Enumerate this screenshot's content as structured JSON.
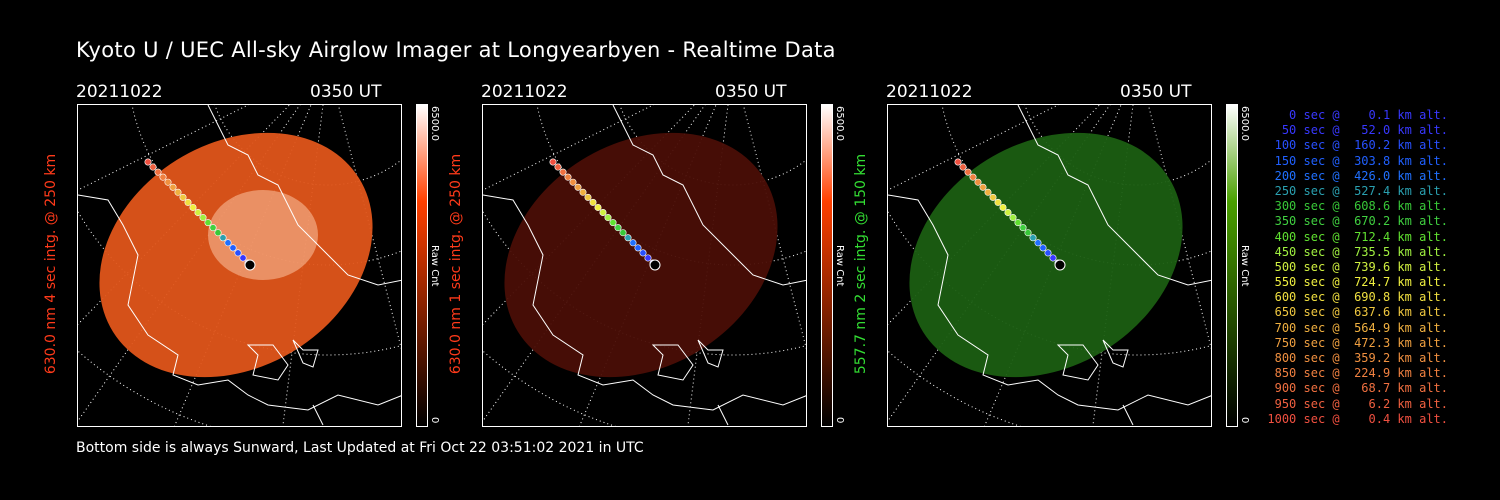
{
  "title": "Kyoto U / UEC All-sky Airglow Imager at Longyearbyen - Realtime Data",
  "footer": "Bottom side is always Sunward, Last Updated at Fri Oct 22 03:51:02 2021 in UTC",
  "panels": [
    {
      "date": "20211022",
      "time": "0350 UT",
      "ylabel": "630.0 nm 4 sec intg. @ 250 km",
      "label_color": "#ff3a1a",
      "cbar_max": "6500.0",
      "cbar_unit": "Raw Cnt",
      "cbar_min": "0",
      "cbar_color": "#ff4000",
      "image_color": "#e0551a",
      "image_level": 0.85
    },
    {
      "date": "20211022",
      "time": "0350 UT",
      "ylabel": "630.0 nm 1 sec intg. @ 250 km",
      "label_color": "#ff3a1a",
      "cbar_max": "6500.0",
      "cbar_unit": "Raw Cnt",
      "cbar_min": "0",
      "cbar_color": "#ff4000",
      "image_color": "#4a0e06",
      "image_level": 0.3
    },
    {
      "date": "20211022",
      "time": "0350 UT",
      "ylabel": "557.7 nm 2 sec intg. @ 150 km",
      "label_color": "#33dd33",
      "cbar_max": "6500.0",
      "cbar_unit": "Raw Cnt",
      "cbar_min": "0",
      "cbar_color": "#4aa000",
      "image_color": "#1b5e12",
      "image_level": 0.4
    }
  ],
  "legend": [
    {
      "text": "   0 sec @    0.1 km alt.",
      "color": "#3838ff"
    },
    {
      "text": "  50 sec @   52.0 km alt.",
      "color": "#3838ff"
    },
    {
      "text": " 100 sec @  160.2 km alt.",
      "color": "#2850ff"
    },
    {
      "text": " 150 sec @  303.8 km alt.",
      "color": "#2060ff"
    },
    {
      "text": " 200 sec @  426.0 km alt.",
      "color": "#2070ff"
    },
    {
      "text": " 250 sec @  527.4 km alt.",
      "color": "#2aa0b0"
    },
    {
      "text": " 300 sec @  608.6 km alt.",
      "color": "#38c838"
    },
    {
      "text": " 350 sec @  670.2 km alt.",
      "color": "#40d040"
    },
    {
      "text": " 400 sec @  712.4 km alt.",
      "color": "#60e030"
    },
    {
      "text": " 450 sec @  735.5 km alt.",
      "color": "#a0f040"
    },
    {
      "text": " 500 sec @  739.6 km alt.",
      "color": "#d0f040"
    },
    {
      "text": " 550 sec @  724.7 km alt.",
      "color": "#f0f040"
    },
    {
      "text": " 600 sec @  690.8 km alt.",
      "color": "#f0e040"
    },
    {
      "text": " 650 sec @  637.6 km alt.",
      "color": "#f0c840"
    },
    {
      "text": " 700 sec @  564.9 km alt.",
      "color": "#f0b040"
    },
    {
      "text": " 750 sec @  472.3 km alt.",
      "color": "#f0a040"
    },
    {
      "text": " 800 sec @  359.2 km alt.",
      "color": "#f09040"
    },
    {
      "text": " 850 sec @  224.9 km alt.",
      "color": "#f08040"
    },
    {
      "text": " 900 sec @   68.7 km alt.",
      "color": "#f07040"
    },
    {
      "text": " 950 sec @    6.2 km alt.",
      "color": "#f06040"
    },
    {
      "text": "1000 sec @    0.4 km alt.",
      "color": "#f05040"
    }
  ]
}
